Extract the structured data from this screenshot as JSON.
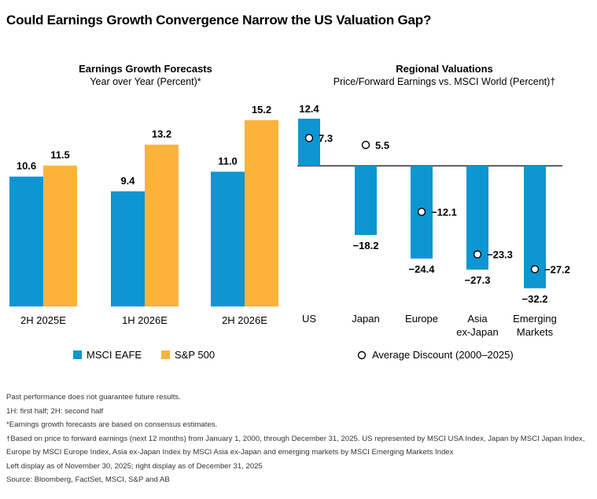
{
  "title": "Could Earnings Growth Convergence Narrow the US Valuation Gap?",
  "colors": {
    "msci": "#0d96d1",
    "sp": "#fbb33a"
  },
  "chart_data": [
    {
      "type": "bar",
      "title": "Earnings Growth Forecasts",
      "subtitle": "Year over Year (Percent)*",
      "categories": [
        "2H 2025E",
        "1H 2026E",
        "2H 2026E"
      ],
      "series": [
        {
          "name": "MSCI EAFE",
          "values": [
            10.6,
            9.4,
            11.0
          ],
          "labels": [
            "10.6",
            "9.4",
            "11.0"
          ]
        },
        {
          "name": "S&P 500",
          "values": [
            11.5,
            13.2,
            15.2
          ],
          "labels": [
            "11.5",
            "13.2",
            "15.2"
          ]
        }
      ],
      "ylim": [
        0,
        15.2
      ],
      "grid": false,
      "legend": "bottom"
    },
    {
      "type": "bar",
      "title": "Regional Valuations",
      "subtitle": "Price/Forward Earnings vs. MSCI World (Percent)†",
      "categories": [
        [
          "US"
        ],
        [
          "Japan"
        ],
        [
          "Europe"
        ],
        [
          "Asia",
          "ex-Japan"
        ],
        [
          "Emerging",
          "Markets"
        ]
      ],
      "series": [
        {
          "name": "",
          "values": [
            12.4,
            0,
            -24.4,
            -27.3,
            -32.2
          ],
          "labels": [
            "12.4",
            "",
            "−24.4",
            "−27.3",
            "−32.2"
          ]
        },
        {
          "name": "Average Discount (2000–2025)",
          "values": [
            7.3,
            5.5,
            -12.1,
            -23.3,
            -27.2
          ],
          "labels": [
            "7.3",
            "5.5",
            "−12.1",
            "−23.3",
            "−27.2"
          ]
        }
      ],
      "japan_bar_value": -18.2,
      "japan_bar_label": "−18.2",
      "ylim": [
        -32.2,
        12.4
      ],
      "grid": false,
      "legend": "bottom"
    }
  ],
  "footnotes": [
    "Past performance does not guarantee future results.",
    "1H: first half; 2H: second half",
    "*Earnings growth forecasts are based on consensus estimates.",
    "†Based on price to forward earnings (next 12 months) from January 1, 2000, through December 31, 2025. US represented by MSCI USA Index, Japan by MSCI Japan Index, Europe by MSCI Europe Index, Asia ex-Japan Index by MSCI Asia ex-Japan and emerging markets by MSCI Emerging Markets Index",
    "Left display as of November 30, 2025; right display as of December 31, 2025",
    "Source: Bloomberg, FactSet, MSCI, S&P and AB"
  ]
}
